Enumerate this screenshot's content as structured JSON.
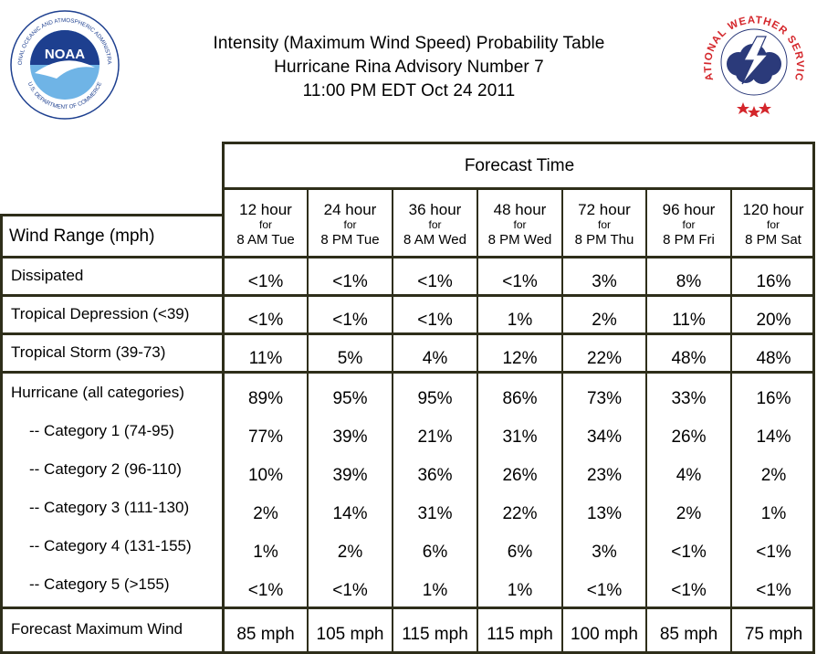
{
  "header": {
    "title_line1": "Intensity (Maximum Wind Speed) Probability Table",
    "title_line2": "Hurricane Rina Advisory Number 7",
    "title_line3": "11:00 PM EDT Oct 24 2011",
    "noaa_logo": {
      "text": "NOAA",
      "ring_text": "NATIONAL OCEANIC AND ATMOSPHERIC ADMINISTRATION",
      "ring_text_bottom": "U.S. DEPARTMENT OF COMMERCE"
    },
    "nws_logo": {
      "ring_text": "NATIONAL WEATHER SERVICE"
    }
  },
  "colors": {
    "frame": "#2e2e1a",
    "noaa_blue": "#1d3f8f",
    "noaa_sky": "#6fb4e6",
    "nws_red": "#d4262b",
    "nws_navy": "#2b3a7a"
  },
  "table": {
    "forecast_time_label": "Forecast Time",
    "wind_range_label": "Wind Range (mph)",
    "columns": [
      {
        "hour": "12 hour",
        "for": "for",
        "when": "8 AM Tue"
      },
      {
        "hour": "24 hour",
        "for": "for",
        "when": "8 PM Tue"
      },
      {
        "hour": "36 hour",
        "for": "for",
        "when": "8 AM Wed"
      },
      {
        "hour": "48 hour",
        "for": "for",
        "when": "8 PM Wed"
      },
      {
        "hour": "72 hour",
        "for": "for",
        "when": "8 PM Thu"
      },
      {
        "hour": "96 hour",
        "for": "for",
        "when": "8 PM Fri"
      },
      {
        "hour": "120 hour",
        "for": "for",
        "when": "8 PM Sat"
      }
    ],
    "rows": [
      {
        "label": "Dissipated",
        "values": [
          "<1%",
          "<1%",
          "<1%",
          "<1%",
          "3%",
          "8%",
          "16%"
        ]
      },
      {
        "label": "Tropical Depression (<39)",
        "values": [
          "<1%",
          "<1%",
          "<1%",
          "1%",
          "2%",
          "11%",
          "20%"
        ]
      },
      {
        "label": "Tropical Storm (39-73)",
        "values": [
          "11%",
          "5%",
          "4%",
          "12%",
          "22%",
          "48%",
          "48%"
        ]
      },
      {
        "label": "Hurricane (all categories)",
        "values": [
          "89%",
          "95%",
          "95%",
          "86%",
          "73%",
          "33%",
          "16%"
        ]
      },
      {
        "label": "-- Category 1 (74-95)",
        "values": [
          "77%",
          "39%",
          "21%",
          "31%",
          "34%",
          "26%",
          "14%"
        ]
      },
      {
        "label": "-- Category 2 (96-110)",
        "values": [
          "10%",
          "39%",
          "36%",
          "26%",
          "23%",
          "4%",
          "2%"
        ]
      },
      {
        "label": "-- Category 3 (111-130)",
        "values": [
          "2%",
          "14%",
          "31%",
          "22%",
          "13%",
          "2%",
          "1%"
        ]
      },
      {
        "label": "-- Category 4 (131-155)",
        "values": [
          "1%",
          "2%",
          "6%",
          "6%",
          "3%",
          "<1%",
          "<1%"
        ]
      },
      {
        "label": "-- Category 5 (>155)",
        "values": [
          "<1%",
          "<1%",
          "1%",
          "1%",
          "<1%",
          "<1%",
          "<1%"
        ]
      }
    ],
    "max_wind": {
      "label": "Forecast Maximum Wind",
      "values": [
        "85 mph",
        "105 mph",
        "115 mph",
        "115 mph",
        "100 mph",
        "85 mph",
        "75 mph"
      ]
    }
  }
}
